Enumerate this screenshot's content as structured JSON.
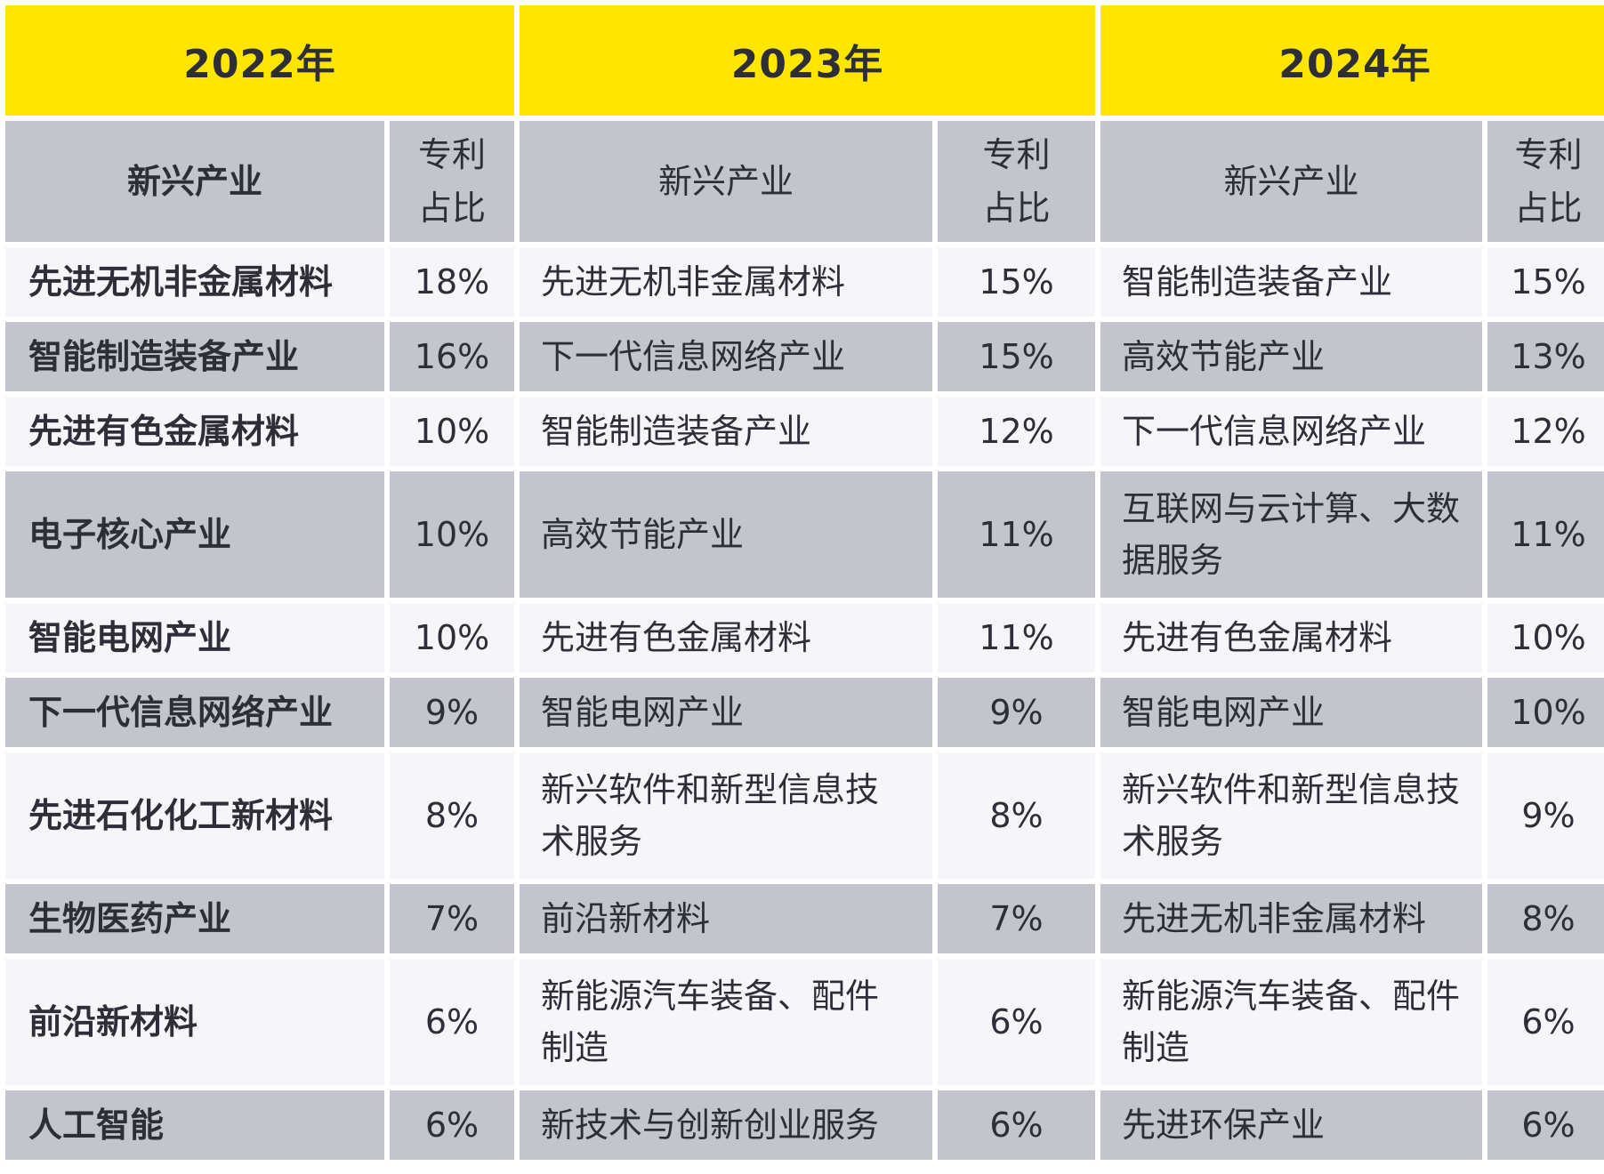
{
  "years": [
    "2022年",
    "2023年",
    "2024年"
  ],
  "header": {
    "industry_label": "新兴产业",
    "share_label_line1": "专利",
    "share_label_line2": "占比"
  },
  "rows": [
    {
      "y2022_industry": "先进无机非金属材料",
      "y2022_share": "18%",
      "y2023_industry": "先进无机非金属材料",
      "y2023_share": "15%",
      "y2024_industry": "智能制造装备产业",
      "y2024_share": "15%"
    },
    {
      "y2022_industry": "智能制造装备产业",
      "y2022_share": "16%",
      "y2023_industry": "下一代信息网络产业",
      "y2023_share": "15%",
      "y2024_industry": "高效节能产业",
      "y2024_share": "13%"
    },
    {
      "y2022_industry": "先进有色金属材料",
      "y2022_share": "10%",
      "y2023_industry": "智能制造装备产业",
      "y2023_share": "12%",
      "y2024_industry": "下一代信息网络产业",
      "y2024_share": "12%"
    },
    {
      "y2022_industry": "电子核心产业",
      "y2022_share": "10%",
      "y2023_industry": "高效节能产业",
      "y2023_share": "11%",
      "y2024_industry": "互联网与云计算、大数据服务",
      "y2024_share": "11%"
    },
    {
      "y2022_industry": "智能电网产业",
      "y2022_share": "10%",
      "y2023_industry": "先进有色金属材料",
      "y2023_share": "11%",
      "y2024_industry": "先进有色金属材料",
      "y2024_share": "10%"
    },
    {
      "y2022_industry": "下一代信息网络产业",
      "y2022_share": "9%",
      "y2023_industry": "智能电网产业",
      "y2023_share": "9%",
      "y2024_industry": "智能电网产业",
      "y2024_share": "10%"
    },
    {
      "y2022_industry": "先进石化化工新材料",
      "y2022_share": "8%",
      "y2023_industry": "新兴软件和新型信息技术服务",
      "y2023_share": "8%",
      "y2024_industry": "新兴软件和新型信息技术服务",
      "y2024_share": "9%"
    },
    {
      "y2022_industry": "生物医药产业",
      "y2022_share": "7%",
      "y2023_industry": "前沿新材料",
      "y2023_share": "7%",
      "y2024_industry": "先进无机非金属材料",
      "y2024_share": "8%"
    },
    {
      "y2022_industry": "前沿新材料",
      "y2022_share": "6%",
      "y2023_industry": "新能源汽车装备、配件制造",
      "y2023_share": "6%",
      "y2024_industry": "新能源汽车装备、配件制造",
      "y2024_share": "6%"
    },
    {
      "y2022_industry": "人工智能",
      "y2022_share": "6%",
      "y2023_industry": "新技术与创新创业服务",
      "y2023_share": "6%",
      "y2024_industry": "先进环保产业",
      "y2024_share": "6%"
    }
  ],
  "colors": {
    "year_header_bg": "#ffe600",
    "dark_row_bg": "#c4c4cd",
    "light_row_bg": "#f6f6fa",
    "text": "#2e2e38"
  }
}
